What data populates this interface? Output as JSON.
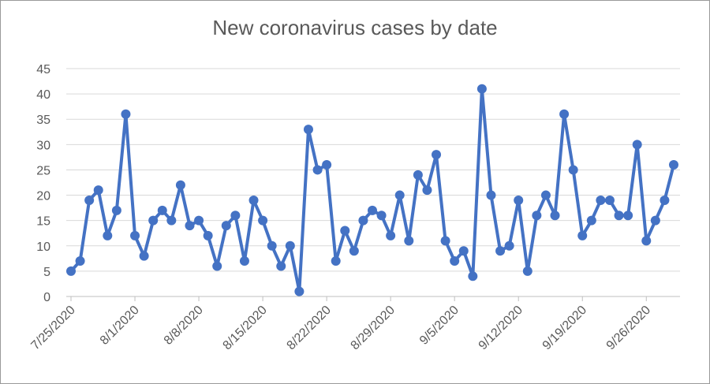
{
  "chart_data": {
    "type": "line",
    "title": "New coronavirus cases by date",
    "xlabel": "",
    "ylabel": "",
    "x_start": "7/25/2020",
    "x_tick_labels": [
      "7/25/2020",
      "8/1/2020",
      "8/8/2020",
      "8/15/2020",
      "8/22/2020",
      "8/29/2020",
      "9/5/2020",
      "9/12/2020",
      "9/19/2020",
      "9/26/2020"
    ],
    "y_ticks": [
      0,
      5,
      10,
      15,
      20,
      25,
      30,
      35,
      40,
      45
    ],
    "ylim": [
      0,
      45
    ],
    "grid": true,
    "legend": "none",
    "series": [
      {
        "color": "#4472C4",
        "x": [
          "7/25/2020",
          "7/26/2020",
          "7/27/2020",
          "7/28/2020",
          "7/29/2020",
          "7/30/2020",
          "7/31/2020",
          "8/1/2020",
          "8/2/2020",
          "8/3/2020",
          "8/4/2020",
          "8/5/2020",
          "8/6/2020",
          "8/7/2020",
          "8/8/2020",
          "8/9/2020",
          "8/10/2020",
          "8/11/2020",
          "8/12/2020",
          "8/13/2020",
          "8/14/2020",
          "8/15/2020",
          "8/16/2020",
          "8/17/2020",
          "8/18/2020",
          "8/19/2020",
          "8/20/2020",
          "8/21/2020",
          "8/22/2020",
          "8/23/2020",
          "8/24/2020",
          "8/25/2020",
          "8/26/2020",
          "8/27/2020",
          "8/28/2020",
          "8/29/2020",
          "8/30/2020",
          "8/31/2020",
          "9/1/2020",
          "9/2/2020",
          "9/3/2020",
          "9/4/2020",
          "9/5/2020",
          "9/6/2020",
          "9/7/2020",
          "9/8/2020",
          "9/9/2020",
          "9/10/2020",
          "9/11/2020",
          "9/12/2020",
          "9/13/2020",
          "9/14/2020",
          "9/15/2020",
          "9/16/2020",
          "9/17/2020",
          "9/18/2020",
          "9/19/2020",
          "9/20/2020",
          "9/21/2020",
          "9/22/2020",
          "9/23/2020",
          "9/24/2020",
          "9/25/2020",
          "9/26/2020",
          "9/27/2020",
          "9/28/2020",
          "9/29/2020"
        ],
        "values": [
          5,
          7,
          19,
          21,
          12,
          17,
          36,
          12,
          8,
          15,
          17,
          15,
          22,
          14,
          15,
          12,
          6,
          14,
          16,
          7,
          19,
          15,
          10,
          6,
          10,
          1,
          33,
          25,
          26,
          7,
          13,
          9,
          15,
          17,
          16,
          12,
          20,
          11,
          24,
          21,
          28,
          11,
          7,
          9,
          4,
          41,
          20,
          9,
          10,
          19,
          5,
          16,
          20,
          16,
          36,
          25,
          12,
          15,
          19,
          19,
          16,
          16,
          30,
          11,
          15,
          19,
          26
        ]
      }
    ]
  }
}
